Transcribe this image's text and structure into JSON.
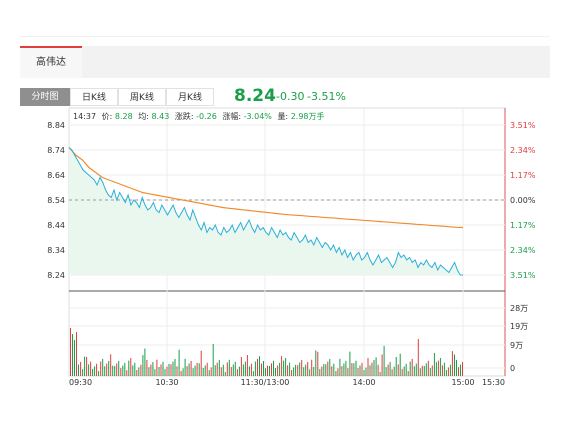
{
  "stock": {
    "name": "高伟达"
  },
  "tabs": [
    {
      "label": "分时图",
      "active": true
    },
    {
      "label": "日K线",
      "active": false
    },
    {
      "label": "周K线",
      "active": false
    },
    {
      "label": "月K线",
      "active": false
    }
  ],
  "quote": {
    "price": "8.24",
    "change": "-0.30",
    "change_pct": "-3.51%"
  },
  "info_line": {
    "time": "14:37",
    "price_label": "价:",
    "price": "8.28",
    "avg_label": "均:",
    "avg": "8.43",
    "chg_label": "涨跌:",
    "chg": "-0.26",
    "pct_label": "涨幅:",
    "pct": "-3.04%",
    "vol_label": "量:",
    "vol": "2.98万手"
  },
  "colors": {
    "up": "#e03d3d",
    "down": "#1a9e48",
    "price_line": "#29b0d8",
    "avg_line": "#f08c2e",
    "area_fill": "#eaf7ee"
  },
  "chart_data": {
    "type": "line",
    "x_ticks": [
      "09:30",
      "10:30",
      "11:30/13:00",
      "14:00",
      "15:00",
      "15:30"
    ],
    "y_left_ticks": [
      "8.84",
      "8.74",
      "8.64",
      "8.54",
      "8.44",
      "8.34",
      "8.24"
    ],
    "y_right_ticks": [
      "3.51%",
      "2.34%",
      "1.17%",
      "0.00%",
      "1.17%",
      "2.34%",
      "3.51%"
    ],
    "vol_ticks": [
      "28万",
      "19万",
      "9万",
      "0"
    ],
    "ylim": [
      8.24,
      8.84
    ],
    "prev_close": 8.54,
    "series": [
      {
        "name": "价",
        "values": [
          8.75,
          8.74,
          8.72,
          8.7,
          8.68,
          8.66,
          8.65,
          8.64,
          8.63,
          8.62,
          8.6,
          8.63,
          8.61,
          8.58,
          8.56,
          8.55,
          8.58,
          8.54,
          8.57,
          8.55,
          8.53,
          8.56,
          8.52,
          8.54,
          8.53,
          8.51,
          8.55,
          8.52,
          8.5,
          8.51,
          8.53,
          8.5,
          8.49,
          8.52,
          8.5,
          8.48,
          8.5,
          8.52,
          8.49,
          8.47,
          8.49,
          8.51,
          8.48,
          8.46,
          8.5,
          8.47,
          8.44,
          8.42,
          8.45,
          8.41,
          8.43,
          8.42,
          8.44,
          8.41,
          8.4,
          8.43,
          8.41,
          8.42,
          8.44,
          8.41,
          8.43,
          8.45,
          8.42,
          8.44,
          8.46,
          8.43,
          8.41,
          8.44,
          8.42,
          8.43,
          8.41,
          8.4,
          8.43,
          8.41,
          8.39,
          8.42,
          8.4,
          8.41,
          8.39,
          8.38,
          8.41,
          8.39,
          8.37,
          8.38,
          8.4,
          8.37,
          8.38,
          8.36,
          8.39,
          8.37,
          8.35,
          8.37,
          8.36,
          8.34,
          8.36,
          8.33,
          8.35,
          8.32,
          8.34,
          8.31,
          8.33,
          8.3,
          8.32,
          8.33,
          8.3,
          8.31,
          8.33,
          8.3,
          8.28,
          8.3,
          8.32,
          8.29,
          8.3,
          8.31,
          8.29,
          8.27,
          8.29,
          8.33,
          8.31,
          8.32,
          8.3,
          8.31,
          8.29,
          8.3,
          8.27,
          8.29,
          8.28,
          8.3,
          8.28,
          8.27,
          8.29,
          8.26,
          8.28,
          8.27,
          8.26,
          8.25,
          8.27,
          8.29,
          8.26,
          8.24,
          8.24
        ]
      },
      {
        "name": "均",
        "values": [
          8.75,
          8.72,
          8.7,
          8.67,
          8.65,
          8.63,
          8.62,
          8.61,
          8.6,
          8.59,
          8.58,
          8.57,
          8.565,
          8.56,
          8.555,
          8.55,
          8.545,
          8.54,
          8.535,
          8.53,
          8.525,
          8.52,
          8.515,
          8.51,
          8.507,
          8.504,
          8.501,
          8.498,
          8.495,
          8.492,
          8.489,
          8.486,
          8.483,
          8.481,
          8.479,
          8.477,
          8.475,
          8.473,
          8.471,
          8.469,
          8.467,
          8.465,
          8.463,
          8.461,
          8.459,
          8.457,
          8.455,
          8.453,
          8.451,
          8.449,
          8.447,
          8.445,
          8.443,
          8.441,
          8.439,
          8.437,
          8.435,
          8.433,
          8.431,
          8.43
        ]
      }
    ],
    "volume_max_label": "28万"
  }
}
